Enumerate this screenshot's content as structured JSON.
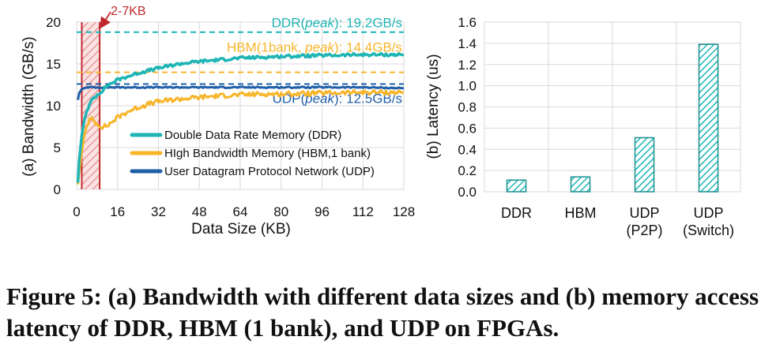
{
  "colors": {
    "ddr": "#1fb5b5",
    "hbm": "#f7b52a",
    "udp": "#1f5fa8",
    "highlight": "#c0282d",
    "grid": "#d9d9d9"
  },
  "chart_data": [
    {
      "type": "line",
      "panel_label": "(a)",
      "ylabel": "(a) Bandwidth (GB/s)",
      "xlabel": "Data Size (KB)",
      "xlim": [
        0,
        128
      ],
      "ylim": [
        0,
        20
      ],
      "xticks": [
        0,
        16,
        32,
        48,
        64,
        80,
        96,
        112,
        128
      ],
      "yticks": [
        0,
        5,
        10,
        15,
        20
      ],
      "legend_position": "bottom-right",
      "grid": true,
      "series": [
        {
          "name": "Double Data Rate Memory (DDR)",
          "key": "ddr",
          "x": [
            0.5,
            1,
            2,
            3,
            4,
            5,
            6,
            8,
            10,
            12,
            16,
            20,
            24,
            28,
            32,
            40,
            48,
            56,
            64,
            72,
            80,
            96,
            112,
            128
          ],
          "y": [
            0.8,
            3.5,
            6.5,
            8.3,
            9.4,
            10.1,
            10.7,
            11.3,
            11.8,
            12.4,
            13.1,
            13.5,
            13.9,
            14.2,
            14.5,
            15.0,
            15.3,
            15.5,
            15.7,
            15.8,
            15.9,
            16.0,
            16.1,
            16.1
          ]
        },
        {
          "name": "HIgh Bandwidth Memory (HBM,1 bank)",
          "key": "hbm",
          "x": [
            0.5,
            1,
            2,
            3,
            4,
            5,
            6,
            7,
            8,
            10,
            12,
            14,
            16,
            20,
            24,
            28,
            32,
            40,
            48,
            56,
            64,
            72,
            80,
            96,
            112,
            128
          ],
          "y": [
            0.6,
            2.0,
            4.5,
            6.5,
            7.6,
            8.3,
            8.4,
            8.1,
            7.8,
            7.5,
            7.6,
            8.1,
            8.6,
            9.3,
            9.8,
            10.2,
            10.5,
            10.8,
            11.0,
            11.2,
            11.3,
            11.4,
            11.4,
            11.5,
            11.6,
            11.6
          ]
        },
        {
          "name": "User Datagram Protocol Network (UDP)",
          "key": "udp",
          "x": [
            0.5,
            1,
            2,
            3,
            4,
            6,
            8,
            16,
            32,
            48,
            64,
            80,
            96,
            112,
            128
          ],
          "y": [
            10.7,
            11.5,
            12.0,
            12.1,
            12.2,
            12.2,
            12.2,
            12.2,
            12.2,
            12.2,
            12.2,
            12.2,
            12.2,
            12.2,
            12.1
          ]
        }
      ],
      "reference_lines": [
        {
          "label_pre": "DDR(",
          "label_em": "peak",
          "label_post": "): 19.2GB/s",
          "value": 18.8,
          "key": "ddr"
        },
        {
          "label_pre": "HBM(1bank, ",
          "label_em": "peak",
          "label_post": "): 14.4GB/s",
          "value": 14.0,
          "key": "hbm"
        },
        {
          "label_pre": "UDP(",
          "label_em": "peak",
          "label_post": "): 12.5GB/s",
          "value": 12.6,
          "key": "udp"
        }
      ],
      "annotation": {
        "label": "2-7KB",
        "x_start": 2,
        "x_end": 9
      }
    },
    {
      "type": "bar",
      "panel_label": "(b)",
      "ylabel": "(b) Latency (us)",
      "ylim": [
        0,
        1.6
      ],
      "yticks": [
        "0.0",
        "0.2",
        "0.4",
        "0.6",
        "0.8",
        "1.0",
        "1.2",
        "1.4",
        "1.6"
      ],
      "grid": true,
      "categories": [
        [
          "DDR"
        ],
        [
          "HBM"
        ],
        [
          "UDP",
          "(P2P)"
        ],
        [
          "UDP",
          "(Switch)"
        ]
      ],
      "values": [
        0.11,
        0.14,
        0.51,
        1.39
      ]
    }
  ],
  "caption": {
    "text": "Figure 5: (a) Bandwidth with different data sizes and (b) memory access latency of DDR, HBM (1 bank), and UDP on FPGAs."
  }
}
